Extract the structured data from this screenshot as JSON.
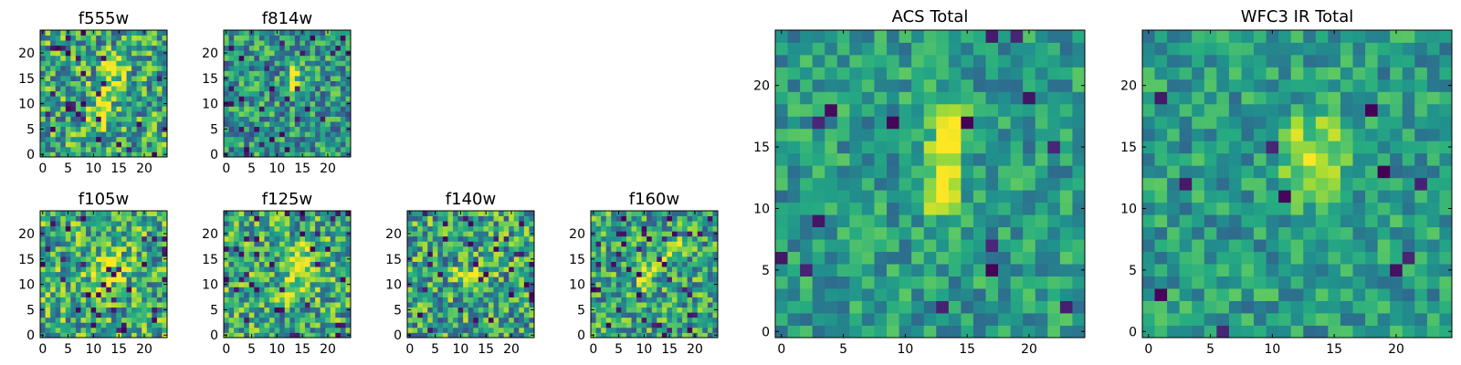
{
  "chart_data": [
    {
      "type": "heatmap",
      "title": "f555w",
      "xticks": [
        "0",
        "5",
        "10",
        "15",
        "20"
      ],
      "yticks": [
        "0",
        "5",
        "10",
        "15",
        "20"
      ],
      "grid_size": [
        25,
        25
      ],
      "xlim": [
        -0.5,
        24.5
      ],
      "ylim": [
        -0.5,
        24.5
      ],
      "colormap": "viridis",
      "feature": "faint diagonal bright region near center"
    },
    {
      "type": "heatmap",
      "title": "f814w",
      "xticks": [
        "0",
        "5",
        "10",
        "15",
        "20"
      ],
      "yticks": [
        "0",
        "5",
        "10",
        "15",
        "20"
      ],
      "grid_size": [
        25,
        25
      ],
      "xlim": [
        -0.5,
        24.5
      ],
      "ylim": [
        -0.5,
        24.5
      ],
      "colormap": "viridis",
      "feature": "bright diagonal streak at approx x=12-14, y=12-17"
    },
    {
      "type": "heatmap",
      "title": "f105w",
      "xticks": [
        "0",
        "5",
        "10",
        "15",
        "20"
      ],
      "yticks": [
        "0",
        "5",
        "10",
        "15",
        "20"
      ],
      "grid_size": [
        25,
        25
      ],
      "xlim": [
        -0.5,
        24.5
      ],
      "ylim": [
        -0.5,
        24.5
      ],
      "colormap": "viridis",
      "feature": "bright region at approx x=10-15, y=10-16"
    },
    {
      "type": "heatmap",
      "title": "f125w",
      "xticks": [
        "0",
        "5",
        "10",
        "15",
        "20"
      ],
      "yticks": [
        "0",
        "5",
        "10",
        "15",
        "20"
      ],
      "grid_size": [
        25,
        25
      ],
      "xlim": [
        -0.5,
        24.5
      ],
      "ylim": [
        -0.5,
        24.5
      ],
      "colormap": "viridis",
      "feature": "bright region at approx x=12-16, y=10-17"
    },
    {
      "type": "heatmap",
      "title": "f140w",
      "xticks": [
        "0",
        "5",
        "10",
        "15",
        "20"
      ],
      "yticks": [
        "0",
        "5",
        "10",
        "15",
        "20"
      ],
      "grid_size": [
        25,
        25
      ],
      "xlim": [
        -0.5,
        24.5
      ],
      "ylim": [
        -0.5,
        24.5
      ],
      "colormap": "viridis",
      "feature": "bright horizontal band at approx x=10-15, y=11-13"
    },
    {
      "type": "heatmap",
      "title": "f160w",
      "xticks": [
        "0",
        "5",
        "10",
        "15",
        "20"
      ],
      "yticks": [
        "0",
        "5",
        "10",
        "15",
        "20"
      ],
      "grid_size": [
        25,
        25
      ],
      "xlim": [
        -0.5,
        24.5
      ],
      "ylim": [
        -0.5,
        24.5
      ],
      "colormap": "viridis",
      "feature": "bright arc from approx (10,11) to (16,17)"
    },
    {
      "type": "heatmap",
      "title": "ACS Total",
      "xticks": [
        "0",
        "5",
        "10",
        "15",
        "20"
      ],
      "yticks": [
        "0",
        "5",
        "10",
        "15",
        "20"
      ],
      "grid_size": [
        25,
        25
      ],
      "xlim": [
        -0.5,
        24.5
      ],
      "ylim": [
        -0.5,
        24.5
      ],
      "colormap": "viridis",
      "feature": "bright elongated source at approx x=12-14, y=11-17"
    },
    {
      "type": "heatmap",
      "title": "WFC3 IR Total",
      "xticks": [
        "0",
        "5",
        "10",
        "15",
        "20"
      ],
      "yticks": [
        "0",
        "5",
        "10",
        "15",
        "20"
      ],
      "grid_size": [
        25,
        25
      ],
      "xlim": [
        -0.5,
        24.5
      ],
      "ylim": [
        -0.5,
        24.5
      ],
      "colormap": "viridis",
      "feature": "bright source at approx x=12-15, y=11-17"
    }
  ],
  "colors": {
    "viridis_dark": "#440154",
    "viridis_mid": "#21918c",
    "viridis_bright": "#fde725"
  }
}
